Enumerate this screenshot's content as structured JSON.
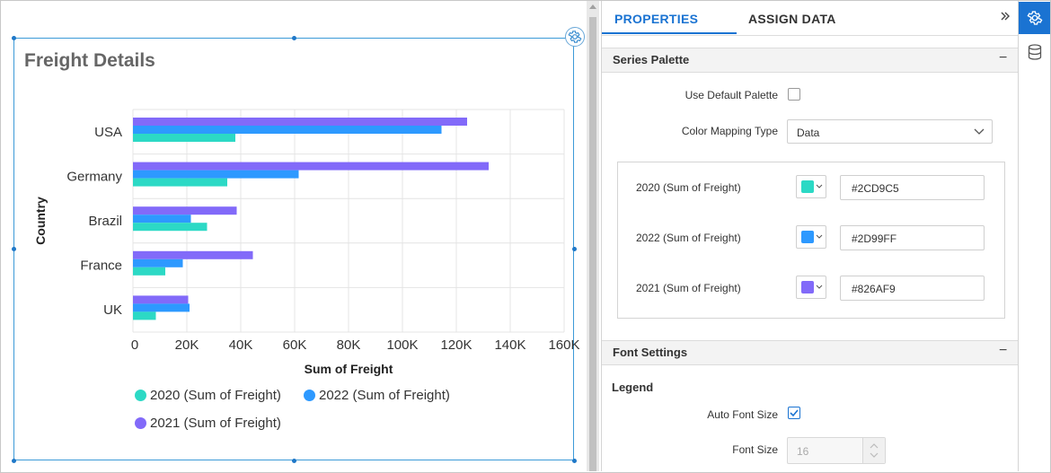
{
  "widget": {
    "title": "Freight Details"
  },
  "chart_data": {
    "type": "bar",
    "orientation": "horizontal",
    "categories": [
      "USA",
      "Germany",
      "Brazil",
      "France",
      "UK"
    ],
    "series": [
      {
        "name": "2021 (Sum of Freight)",
        "color": "#826AF9",
        "values": [
          124000,
          132000,
          38500,
          44500,
          20500
        ]
      },
      {
        "name": "2022 (Sum of Freight)",
        "color": "#2D99FF",
        "values": [
          114500,
          61500,
          21500,
          18500,
          21000
        ]
      },
      {
        "name": "2020 (Sum of Freight)",
        "color": "#2CD9C5",
        "values": [
          38000,
          35000,
          27500,
          12000,
          8500
        ]
      }
    ],
    "xaxis": {
      "title": "Sum of Freight",
      "ticks": [
        "0",
        "20K",
        "40K",
        "60K",
        "80K",
        "100K",
        "120K",
        "140K",
        "160K"
      ],
      "range": [
        0,
        160000
      ]
    },
    "yaxis": {
      "title": "Country"
    },
    "legend": {
      "placement": "bottom",
      "items": [
        {
          "label": "2020 (Sum of Freight)",
          "color": "#2CD9C5"
        },
        {
          "label": "2022 (Sum of Freight)",
          "color": "#2D99FF"
        },
        {
          "label": "2021 (Sum of Freight)",
          "color": "#826AF9"
        }
      ]
    },
    "grid": true
  },
  "panel": {
    "tabs": {
      "properties": "PROPERTIES",
      "assign_data": "ASSIGN DATA"
    },
    "collapse_icon": "double-chevron-right-icon",
    "series_palette": {
      "title": "Series Palette",
      "collapse_symbol": "−",
      "use_default_label": "Use Default Palette",
      "use_default_checked": false,
      "mapping_label": "Color Mapping Type",
      "mapping_value": "Data",
      "rows": [
        {
          "label": "2020 (Sum of Freight)",
          "hex": "#2CD9C5",
          "color": "#2CD9C5"
        },
        {
          "label": "2022 (Sum of Freight)",
          "hex": "#2D99FF",
          "color": "#2D99FF"
        },
        {
          "label": "2021 (Sum of Freight)",
          "hex": "#826AF9",
          "color": "#826AF9"
        }
      ]
    },
    "font_settings": {
      "title": "Font Settings",
      "collapse_symbol": "−",
      "legend_heading": "Legend",
      "auto_font_label": "Auto Font Size",
      "auto_font_checked": true,
      "font_size_label": "Font Size",
      "font_size_value": "16"
    }
  },
  "iconbar": {
    "settings_icon": "gear-icon",
    "data_icon": "database-icon"
  },
  "colors": {
    "accent": "#1A73D2",
    "widget_border": "#3C9AD8"
  }
}
